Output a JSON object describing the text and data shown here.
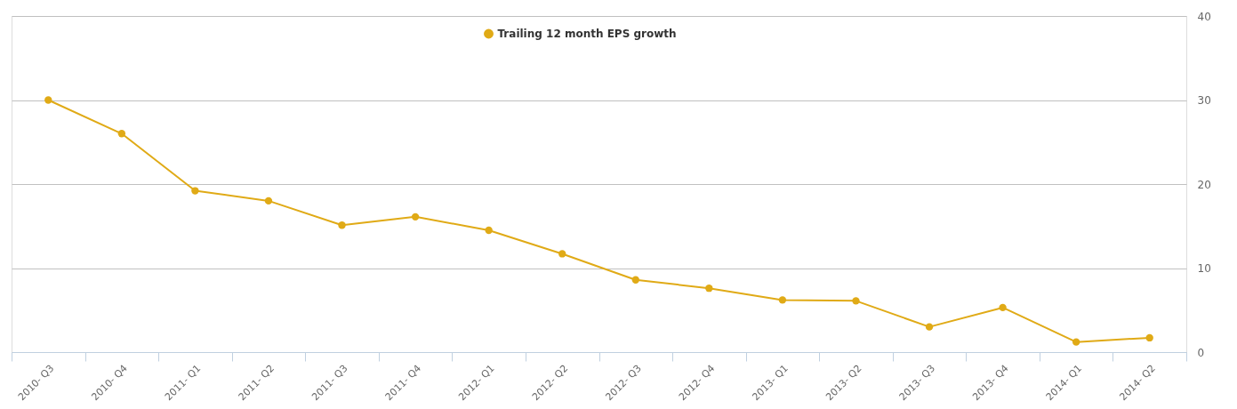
{
  "chart_data": {
    "type": "line",
    "categories": [
      "2010- Q3",
      "2010- Q4",
      "2011- Q1",
      "2011- Q2",
      "2011- Q3",
      "2011- Q4",
      "2012- Q1",
      "2012- Q2",
      "2012- Q3",
      "2012- Q4",
      "2013- Q1",
      "2013- Q2",
      "2013- Q3",
      "2013- Q4",
      "2014- Q1",
      "2014- Q2"
    ],
    "series": [
      {
        "name": "Trailing 12 month EPS growth",
        "color": "#e0aa16",
        "values": [
          30.0,
          26.0,
          19.2,
          18.0,
          15.1,
          16.1,
          14.5,
          11.7,
          8.6,
          7.6,
          6.2,
          6.1,
          3.0,
          5.3,
          1.2,
          1.7
        ]
      }
    ],
    "ylim": [
      0,
      40
    ],
    "yticks": [
      0,
      10,
      20,
      30,
      40
    ],
    "grid": "y",
    "legend": "top",
    "marker": "circle",
    "line_style": "solid"
  }
}
